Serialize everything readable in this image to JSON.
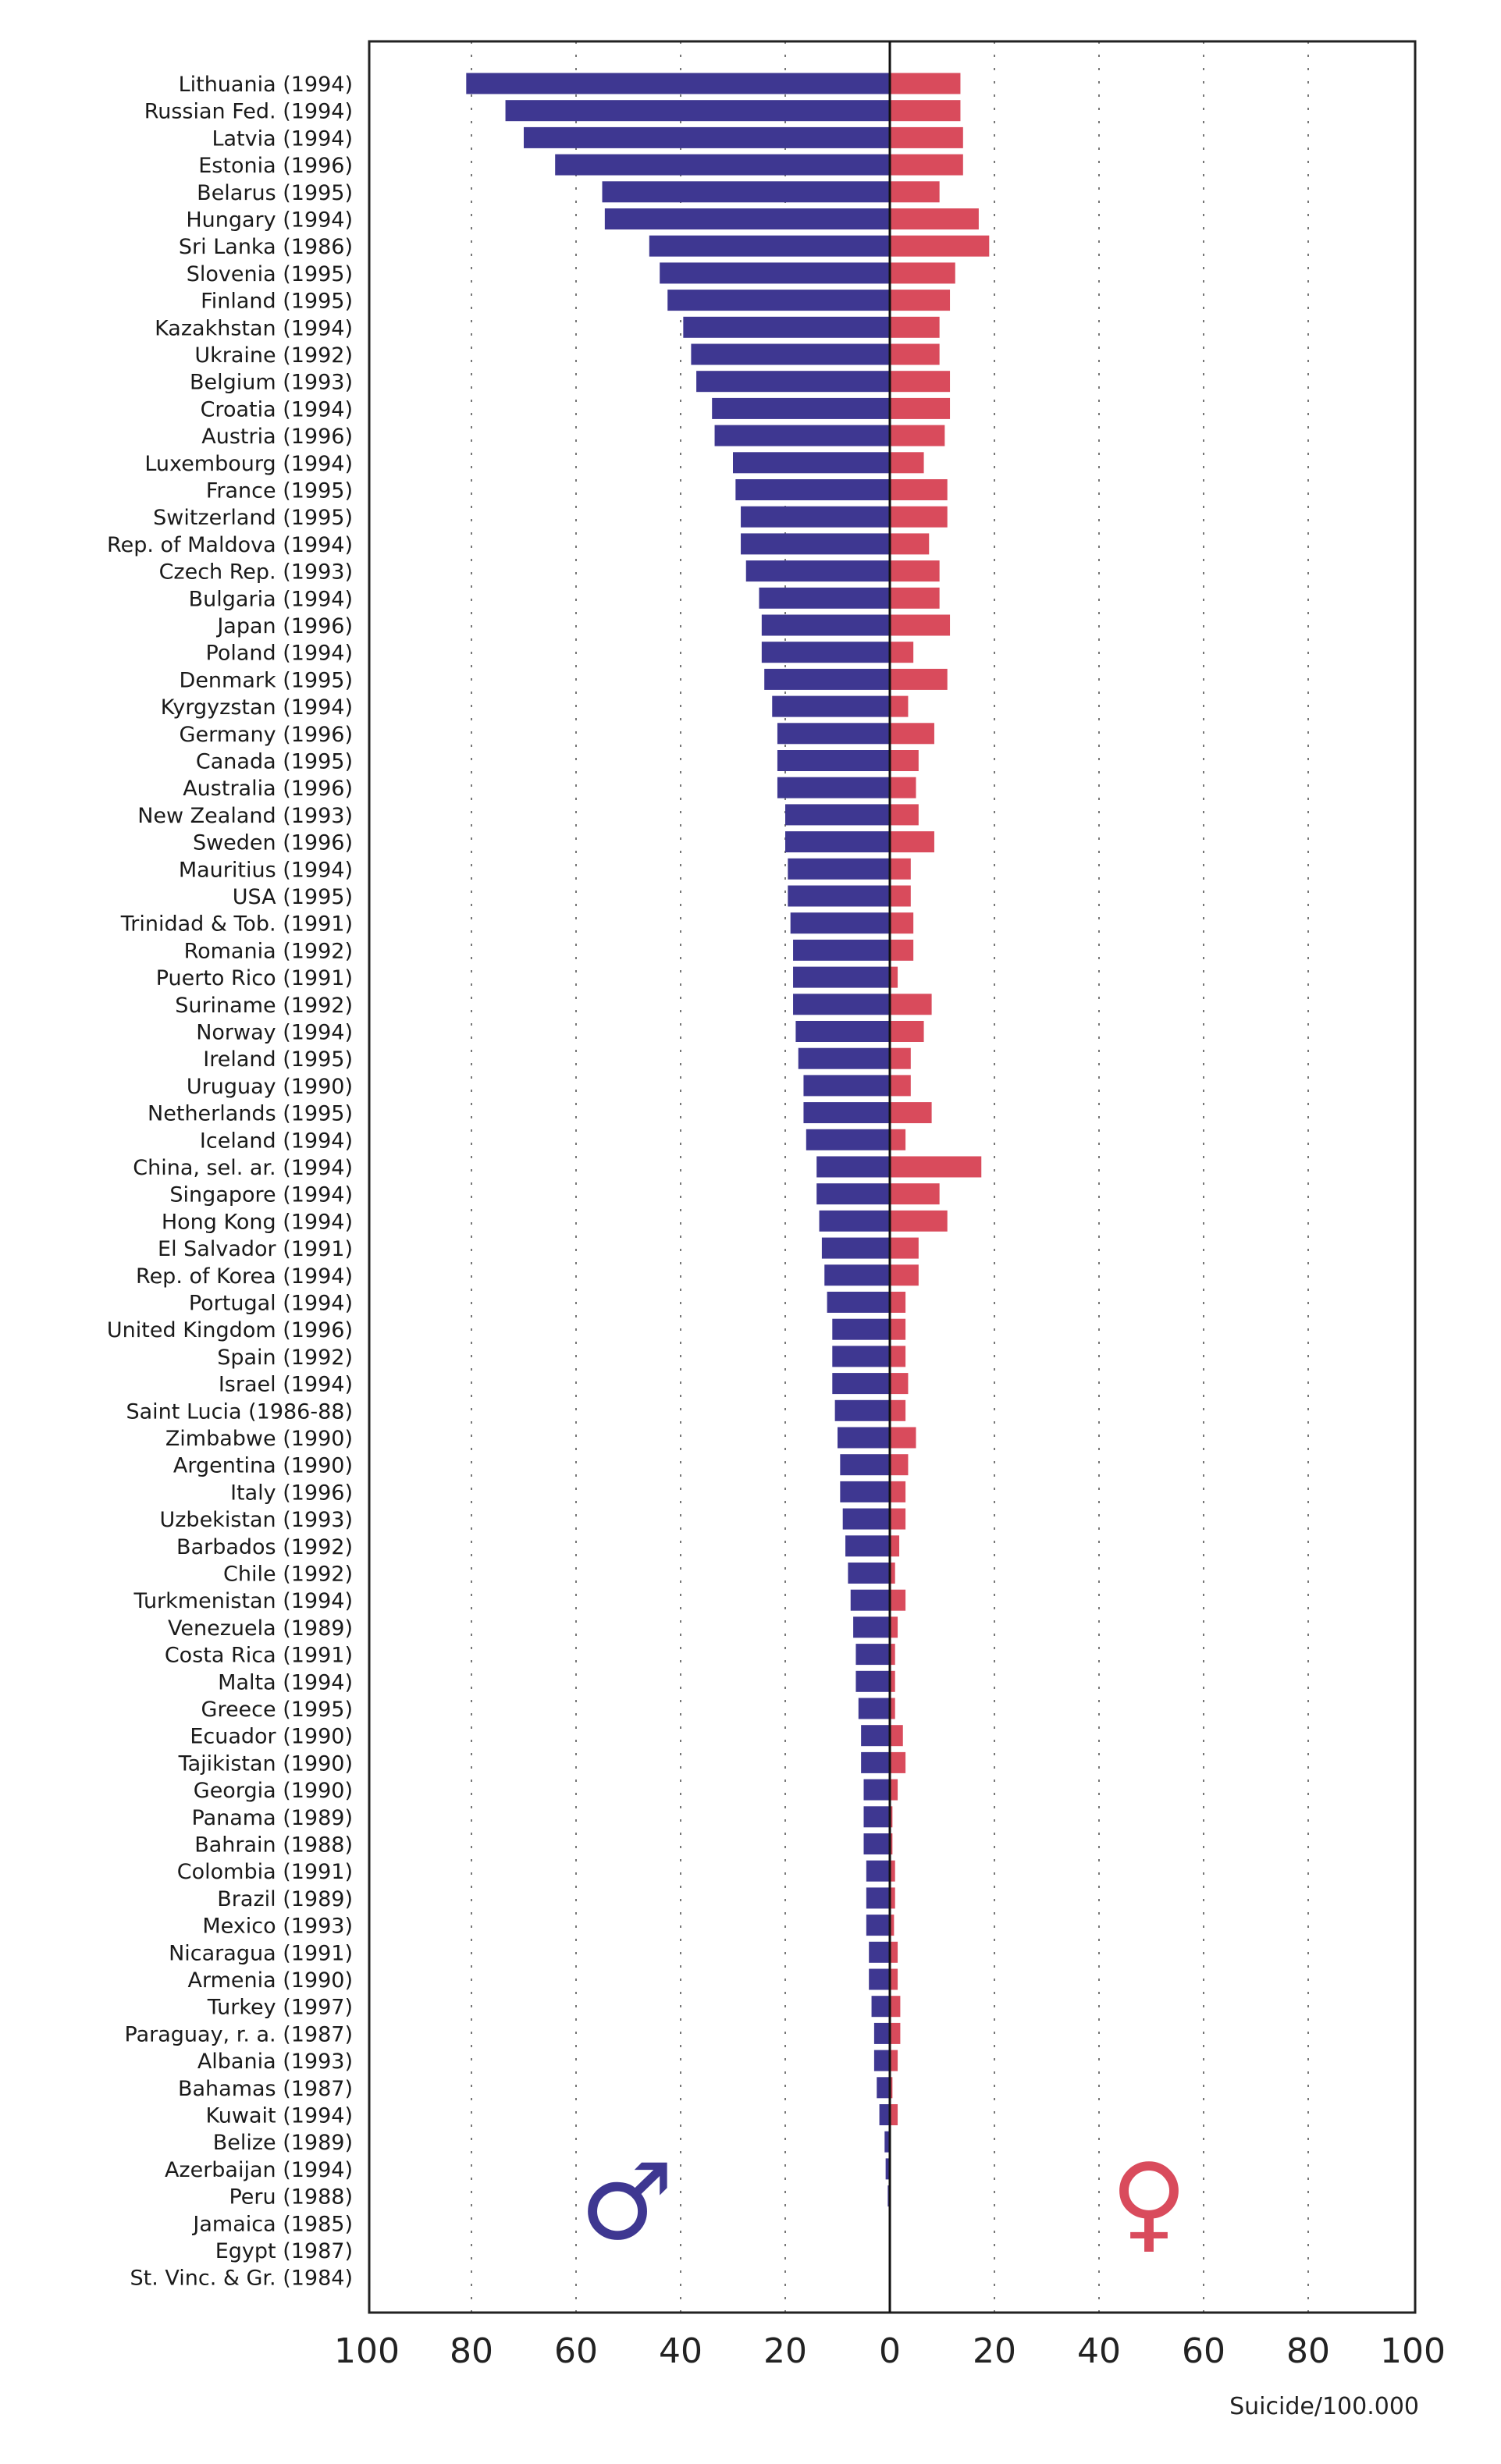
{
  "chart_data": {
    "type": "bar",
    "orientation": "horizontal",
    "layout": "diverging",
    "xlabel": "Suicide/100.000",
    "xlim": [
      -100,
      100
    ],
    "x_ticks": [
      100,
      80,
      60,
      40,
      20,
      0,
      20,
      40,
      60,
      80,
      100
    ],
    "grid": "vertical dotted",
    "legend": [
      {
        "symbol": "♂",
        "side": "left",
        "color": "#3e3791"
      },
      {
        "symbol": "♀",
        "side": "right",
        "color": "#d94b5c"
      }
    ],
    "categories": [
      "Lithuania (1994)",
      "Russian Fed. (1994)",
      "Latvia (1994)",
      "Estonia (1996)",
      "Belarus (1995)",
      "Hungary (1994)",
      "Sri Lanka (1986)",
      "Slovenia (1995)",
      "Finland (1995)",
      "Kazakhstan (1994)",
      "Ukraine (1992)",
      "Belgium (1993)",
      "Croatia (1994)",
      "Austria (1996)",
      "Luxembourg (1994)",
      "France (1995)",
      "Switzerland (1995)",
      "Rep. of Maldova (1994)",
      "Czech Rep. (1993)",
      "Bulgaria (1994)",
      "Japan (1996)",
      "Poland (1994)",
      "Denmark (1995)",
      "Kyrgyzstan (1994)",
      "Germany (1996)",
      "Canada (1995)",
      "Australia (1996)",
      "New Zealand (1993)",
      "Sweden (1996)",
      "Mauritius (1994)",
      "USA (1995)",
      "Trinidad & Tob. (1991)",
      "Romania (1992)",
      "Puerto Rico (1991)",
      "Suriname (1992)",
      "Norway (1994)",
      "Ireland (1995)",
      "Uruguay (1990)",
      "Netherlands (1995)",
      "Iceland (1994)",
      "China, sel. ar. (1994)",
      "Singapore (1994)",
      "Hong Kong (1994)",
      "El Salvador (1991)",
      "Rep. of Korea (1994)",
      "Portugal (1994)",
      "United Kingdom (1996)",
      "Spain (1992)",
      "Israel (1994)",
      "Saint Lucia (1986-88)",
      "Zimbabwe (1990)",
      "Argentina (1990)",
      "Italy (1996)",
      "Uzbekistan (1993)",
      "Barbados (1992)",
      "Chile (1992)",
      "Turkmenistan (1994)",
      "Venezuela (1989)",
      "Costa Rica (1991)",
      "Malta (1994)",
      "Greece (1995)",
      "Ecuador (1990)",
      "Tajikistan (1990)",
      "Georgia (1990)",
      "Panama (1989)",
      "Bahrain (1988)",
      "Colombia (1991)",
      "Brazil (1989)",
      "Mexico (1993)",
      "Nicaragua (1991)",
      "Armenia (1990)",
      "Turkey (1997)",
      "Paraguay, r. a. (1987)",
      "Albania (1993)",
      "Bahamas (1987)",
      "Kuwait (1994)",
      "Belize (1989)",
      "Azerbaijan (1994)",
      "Peru (1988)",
      "Jamaica (1985)",
      "Egypt (1987)",
      "St. Vinc. & Gr. (1984)"
    ],
    "series": [
      {
        "symbol": "♂",
        "color": "#3e3791",
        "values": [
          81,
          73.5,
          70,
          64,
          55,
          54.5,
          46,
          44,
          42.5,
          39.5,
          38,
          37,
          34,
          33.5,
          30,
          29.5,
          28.5,
          28.5,
          27.5,
          25,
          24.5,
          24.5,
          24,
          22.5,
          21.5,
          21.5,
          21.5,
          20,
          20,
          19.5,
          19.5,
          19,
          18.5,
          18.5,
          18.5,
          18,
          17.5,
          16.5,
          16.5,
          16,
          14,
          14,
          13.5,
          13,
          12.5,
          12,
          11,
          11,
          11,
          10.5,
          10,
          9.5,
          9.5,
          9,
          8.5,
          8,
          7.5,
          7,
          6.5,
          6.5,
          6,
          5.5,
          5.5,
          5,
          5,
          5,
          4.5,
          4.5,
          4.5,
          4,
          4,
          3.5,
          3,
          3,
          2.5,
          2,
          1,
          0.8,
          0.4,
          0.2,
          0,
          0
        ]
      },
      {
        "symbol": "♀",
        "color": "#d94b5c",
        "values": [
          13.5,
          13.5,
          14,
          14,
          9.5,
          17,
          19,
          12.5,
          11.5,
          9.5,
          9.5,
          11.5,
          11.5,
          10.5,
          6.5,
          11,
          11,
          7.5,
          9.5,
          9.5,
          11.5,
          4.5,
          11,
          3.5,
          8.5,
          5.5,
          5,
          5.5,
          8.5,
          4,
          4,
          4.5,
          4.5,
          1.5,
          8,
          6.5,
          4,
          4,
          8,
          3,
          17.5,
          9.5,
          11,
          5.5,
          5.5,
          3,
          3,
          3,
          3.5,
          3,
          5,
          3.5,
          3,
          3,
          1.8,
          1,
          3,
          1.5,
          1,
          1,
          1,
          2.5,
          3,
          1.5,
          0.5,
          0.5,
          1,
          1,
          0.8,
          1.5,
          1.5,
          2,
          2,
          1.5,
          0.5,
          1.5,
          0,
          0,
          0,
          0,
          0,
          0
        ]
      }
    ]
  }
}
